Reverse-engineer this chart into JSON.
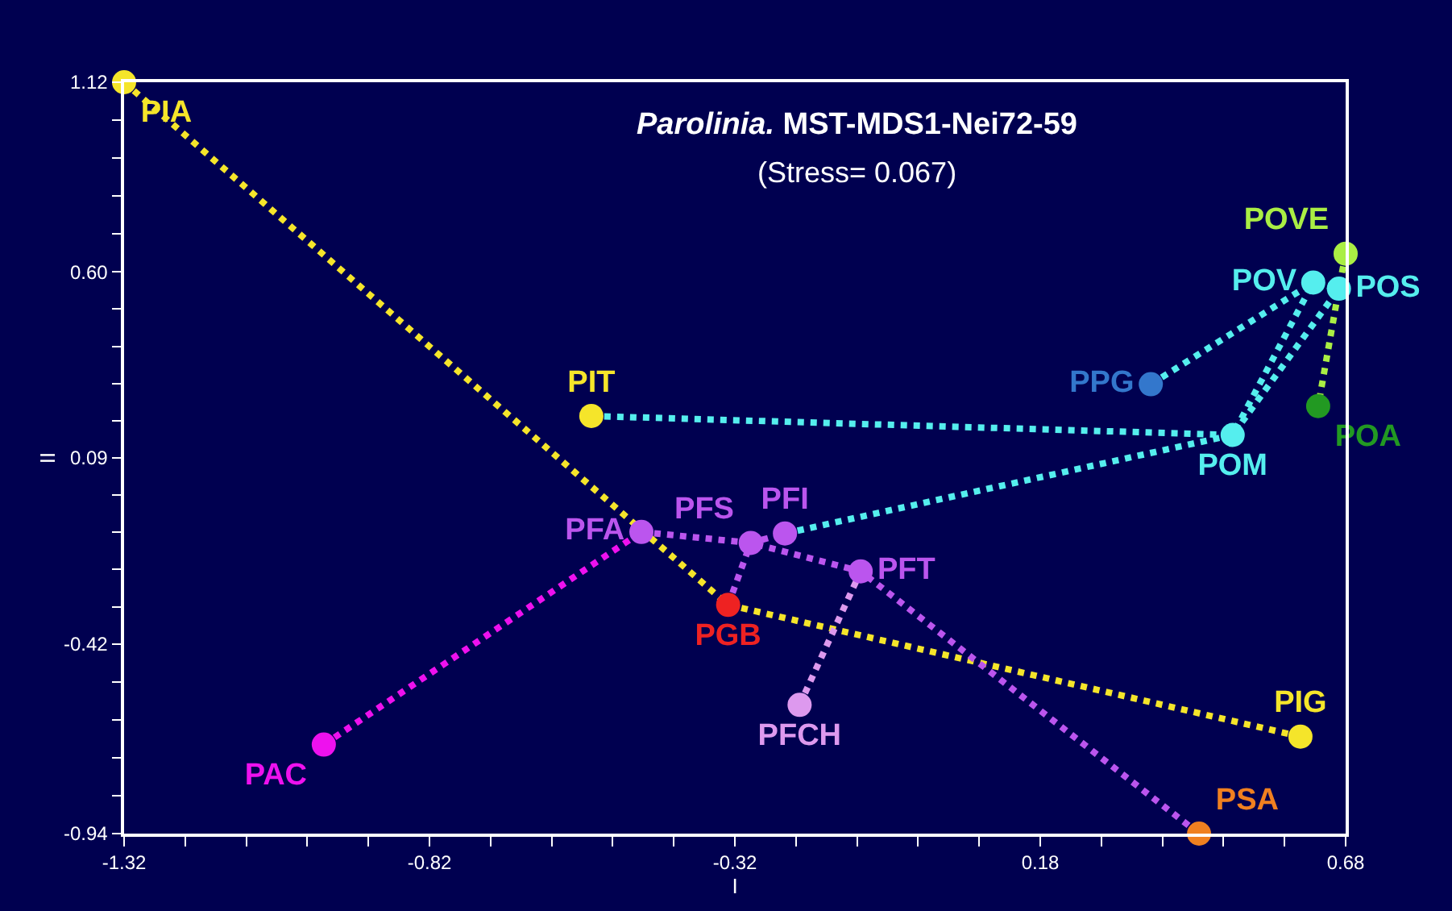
{
  "chart_data": {
    "type": "scatter",
    "title": "Parolinia. MST-MDS1-Nei72-59",
    "subtitle": "(Stress= 0.067)",
    "xlabel": "I",
    "ylabel": "II",
    "xlim": [
      -1.32,
      0.68
    ],
    "ylim": [
      -0.94,
      1.12
    ],
    "xticks": [
      -1.32,
      {
        "value": -1.22,
        "label": null
      },
      {
        "value": -1.12,
        "label": null
      },
      {
        "value": -1.02,
        "label": null
      },
      {
        "value": -0.92,
        "label": null
      },
      -0.82,
      {
        "value": -0.72,
        "label": null
      },
      {
        "value": -0.62,
        "label": null
      },
      {
        "value": -0.52,
        "label": null
      },
      {
        "value": -0.42,
        "label": null
      },
      -0.32,
      {
        "value": -0.22,
        "label": null
      },
      {
        "value": -0.12,
        "label": null
      },
      {
        "value": -0.02,
        "label": null
      },
      {
        "value": 0.08,
        "label": null
      },
      0.18,
      {
        "value": 0.28,
        "label": null
      },
      {
        "value": 0.38,
        "label": null
      },
      {
        "value": 0.48,
        "label": null
      },
      {
        "value": 0.58,
        "label": null
      },
      0.68
    ],
    "yticks": [
      {
        "value": -0.94,
        "label": "-0.94"
      },
      {
        "value": -0.836,
        "label": null
      },
      {
        "value": -0.732,
        "label": null
      },
      {
        "value": -0.628,
        "label": null
      },
      {
        "value": -0.524,
        "label": null
      },
      -0.42,
      {
        "value": -0.318,
        "label": null
      },
      {
        "value": -0.216,
        "label": null
      },
      {
        "value": -0.114,
        "label": null
      },
      {
        "value": -0.012,
        "label": null
      },
      0.09,
      {
        "value": 0.192,
        "label": null
      },
      {
        "value": 0.294,
        "label": null
      },
      {
        "value": 0.396,
        "label": null
      },
      {
        "value": 0.498,
        "label": null
      },
      {
        "value": 0.6,
        "label": "0.60"
      },
      {
        "value": 0.704,
        "label": null
      },
      {
        "value": 0.808,
        "label": null
      },
      {
        "value": 0.912,
        "label": null
      },
      {
        "value": 1.016,
        "label": null
      },
      1.12
    ],
    "grid": false,
    "legend": false,
    "series": [
      {
        "type": "line",
        "color": "#f5e52a",
        "x": [
          -1.32,
          -0.331,
          0.606
        ],
        "values": [
          1.12,
          -0.313,
          -0.674
        ],
        "line_style": "dotted"
      },
      {
        "type": "line",
        "color": "#ee11ee",
        "x": [
          -0.993,
          -0.473
        ],
        "values": [
          -0.696,
          -0.113
        ],
        "line_style": "dotted"
      },
      {
        "type": "line",
        "color": "#bb55ee",
        "x": [
          -0.473,
          -0.294,
          -0.114,
          0.44
        ],
        "values": [
          -0.113,
          -0.143,
          -0.221,
          -0.94
        ],
        "line_style": "dotted"
      },
      {
        "type": "line",
        "color": "#bb55ee",
        "x": [
          -0.331,
          -0.294,
          -0.238
        ],
        "values": [
          -0.313,
          -0.143,
          -0.117
        ],
        "line_style": "dotted"
      },
      {
        "type": "line",
        "color": "#dd99ee",
        "x": [
          -0.214,
          -0.114
        ],
        "values": [
          -0.587,
          -0.221
        ],
        "line_style": "dotted"
      },
      {
        "type": "line",
        "color": "#55eeee",
        "x": [
          -0.555,
          0.495,
          0.669
        ],
        "values": [
          0.205,
          0.153,
          0.554
        ],
        "line_style": "dotted"
      },
      {
        "type": "line",
        "color": "#55eeee",
        "x": [
          -0.238,
          0.495,
          0.627
        ],
        "values": [
          -0.117,
          0.153,
          0.571
        ],
        "line_style": "dotted"
      },
      {
        "type": "line",
        "color": "#55eeee",
        "x": [
          0.361,
          0.627,
          0.669
        ],
        "values": [
          0.292,
          0.571,
          0.554
        ],
        "line_style": "dotted"
      },
      {
        "type": "line",
        "color": "#aaee44",
        "x": [
          0.68,
          0.669,
          0.635
        ],
        "values": [
          0.65,
          0.554,
          0.232
        ],
        "line_style": "dotted"
      },
      {
        "name": "PIA",
        "color": "#f5e52a",
        "x": [
          -1.32
        ],
        "values": [
          1.12
        ],
        "marker": "circle"
      },
      {
        "name": "PIT",
        "color": "#f5e52a",
        "x": [
          -0.555
        ],
        "values": [
          0.205
        ],
        "marker": "circle"
      },
      {
        "name": "PFA",
        "color": "#bb55ee",
        "x": [
          -0.473
        ],
        "values": [
          -0.113
        ],
        "marker": "circle"
      },
      {
        "name": "PGB",
        "color": "#ee2222",
        "x": [
          -0.331
        ],
        "values": [
          -0.313
        ],
        "marker": "circle"
      },
      {
        "name": "PFS",
        "color": "#bb55ee",
        "x": [
          -0.294
        ],
        "values": [
          -0.143
        ],
        "marker": "circle"
      },
      {
        "name": "PFI",
        "color": "#bb55ee",
        "x": [
          -0.238
        ],
        "values": [
          -0.117
        ],
        "marker": "circle"
      },
      {
        "name": "PFT",
        "color": "#bb55ee",
        "x": [
          -0.114
        ],
        "values": [
          -0.221
        ],
        "marker": "circle"
      },
      {
        "name": "PFCH",
        "color": "#dd99ee",
        "x": [
          -0.214
        ],
        "values": [
          -0.587
        ],
        "marker": "circle"
      },
      {
        "name": "PAC",
        "color": "#ee11ee",
        "x": [
          -0.993
        ],
        "values": [
          -0.696
        ],
        "marker": "circle"
      },
      {
        "name": "PSA",
        "color": "#f08020",
        "x": [
          0.44
        ],
        "values": [
          -0.94
        ],
        "marker": "circle"
      },
      {
        "name": "PIG",
        "color": "#f5e52a",
        "x": [
          0.606
        ],
        "values": [
          -0.674
        ],
        "marker": "circle"
      },
      {
        "name": "POM",
        "color": "#55eeee",
        "x": [
          0.495
        ],
        "values": [
          0.153
        ],
        "marker": "circle"
      },
      {
        "name": "PPG",
        "color": "#3377cc",
        "x": [
          0.361
        ],
        "values": [
          0.292
        ],
        "marker": "circle"
      },
      {
        "name": "POA",
        "color": "#229922",
        "x": [
          0.635
        ],
        "values": [
          0.232
        ],
        "marker": "circle"
      },
      {
        "name": "POV",
        "color": "#55eeee",
        "x": [
          0.627
        ],
        "values": [
          0.571
        ],
        "marker": "circle"
      },
      {
        "name": "POS",
        "color": "#55eeee",
        "x": [
          0.669
        ],
        "values": [
          0.554
        ],
        "marker": "circle"
      },
      {
        "name": "POVE",
        "color": "#aaee44",
        "x": [
          0.68
        ],
        "values": [
          0.65
        ],
        "marker": "circle"
      }
    ]
  }
}
